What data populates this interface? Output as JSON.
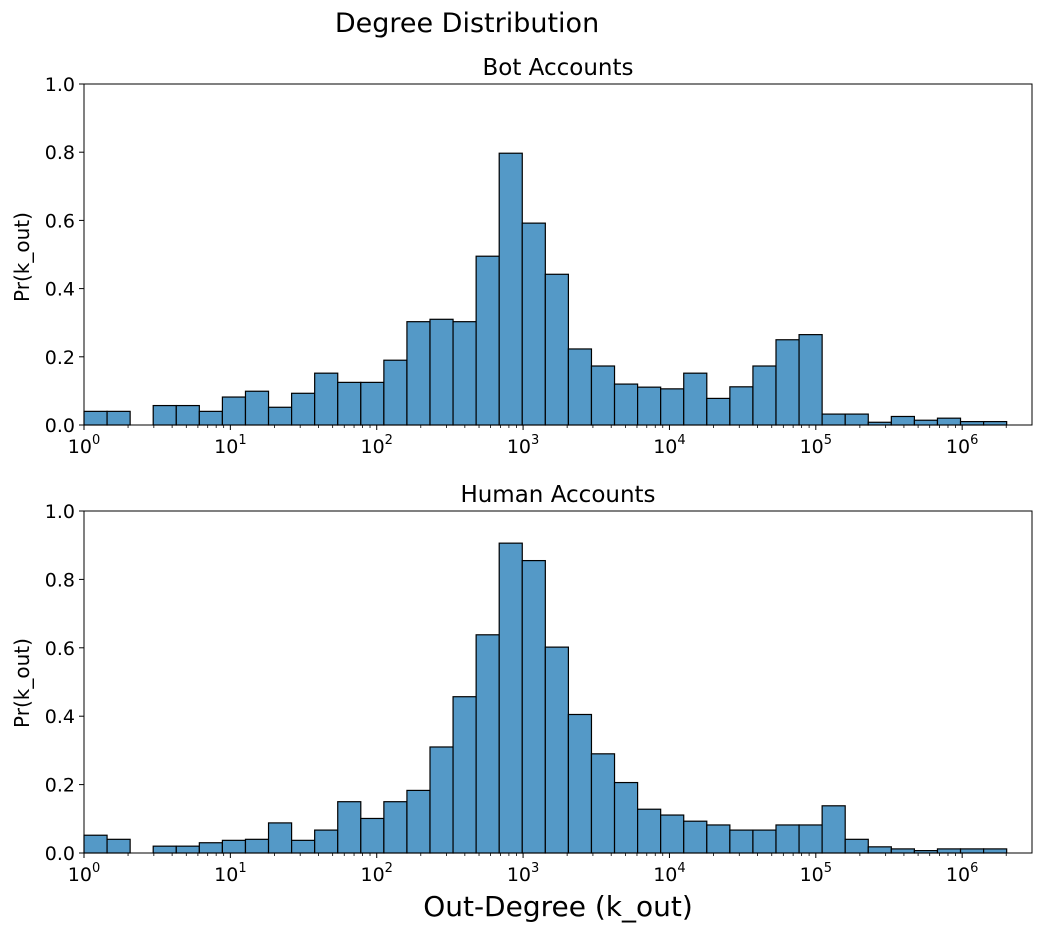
{
  "figure": {
    "title": "Degree Distribution"
  },
  "colors": {
    "bar_fill": "#5499c7",
    "bar_edge": "#000000"
  },
  "chart_data": [
    {
      "type": "bar",
      "title": "Bot Accounts",
      "xlabel": "",
      "ylabel": "Pr(k_out)",
      "xscale": "log",
      "xlim": [
        1,
        3000000
      ],
      "ylim": [
        0,
        1.0
      ],
      "grid": false,
      "x_ticks": [
        {
          "base": "10",
          "exp": "0",
          "value": 1
        },
        {
          "base": "10",
          "exp": "1",
          "value": 10
        },
        {
          "base": "10",
          "exp": "2",
          "value": 100
        },
        {
          "base": "10",
          "exp": "3",
          "value": 1000
        },
        {
          "base": "10",
          "exp": "4",
          "value": 10000
        },
        {
          "base": "10",
          "exp": "5",
          "value": 100000
        },
        {
          "base": "10",
          "exp": "6",
          "value": 1000000
        }
      ],
      "y_ticks": [
        "0.0",
        "0.2",
        "0.4",
        "0.6",
        "0.8",
        "1.0"
      ],
      "bin_width_log10": 0.1576,
      "bins_start": 1,
      "values": [
        0.04,
        0.04,
        0.0,
        0.057,
        0.057,
        0.04,
        0.082,
        0.099,
        0.052,
        0.093,
        0.152,
        0.125,
        0.125,
        0.19,
        0.303,
        0.31,
        0.303,
        0.495,
        0.797,
        0.592,
        0.442,
        0.223,
        0.173,
        0.12,
        0.111,
        0.106,
        0.152,
        0.078,
        0.112,
        0.173,
        0.25,
        0.265,
        0.032,
        0.032,
        0.008,
        0.025,
        0.014,
        0.02,
        0.01,
        0.01
      ]
    },
    {
      "type": "bar",
      "title": "Human Accounts",
      "xlabel": "Out-Degree (k_out)",
      "ylabel": "Pr(k_out)",
      "xscale": "log",
      "xlim": [
        1,
        3000000
      ],
      "ylim": [
        0,
        1.0
      ],
      "grid": false,
      "x_ticks": [
        {
          "base": "10",
          "exp": "0",
          "value": 1
        },
        {
          "base": "10",
          "exp": "1",
          "value": 10
        },
        {
          "base": "10",
          "exp": "2",
          "value": 100
        },
        {
          "base": "10",
          "exp": "3",
          "value": 1000
        },
        {
          "base": "10",
          "exp": "4",
          "value": 10000
        },
        {
          "base": "10",
          "exp": "5",
          "value": 100000
        },
        {
          "base": "10",
          "exp": "6",
          "value": 1000000
        }
      ],
      "y_ticks": [
        "0.0",
        "0.2",
        "0.4",
        "0.6",
        "0.8",
        "1.0"
      ],
      "bin_width_log10": 0.1576,
      "bins_start": 1,
      "values": [
        0.052,
        0.04,
        0.0,
        0.02,
        0.02,
        0.03,
        0.037,
        0.04,
        0.088,
        0.037,
        0.067,
        0.15,
        0.101,
        0.15,
        0.183,
        0.31,
        0.457,
        0.638,
        0.906,
        0.855,
        0.602,
        0.405,
        0.29,
        0.206,
        0.128,
        0.111,
        0.093,
        0.082,
        0.067,
        0.067,
        0.082,
        0.082,
        0.138,
        0.04,
        0.018,
        0.012,
        0.007,
        0.012,
        0.012,
        0.012
      ]
    }
  ]
}
